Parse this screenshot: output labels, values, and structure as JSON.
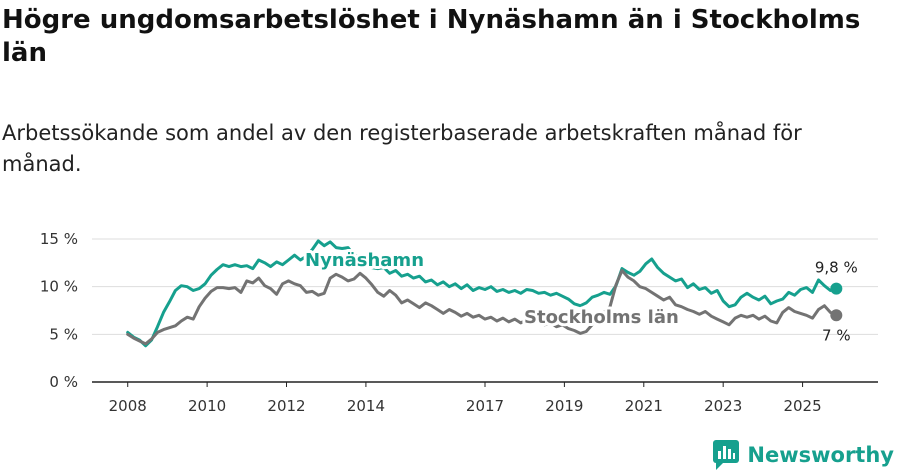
{
  "title": "Högre ungdomsarbetslöshet i Nynäshamn än i Stockholms län",
  "subtitle": "Arbetssökande som andel av den registerbaserade arbetskraften månad för månad.",
  "brand": "Newsworthy",
  "colors": {
    "nynashamn": "#16a08e",
    "stockholm": "#737373",
    "grid": "#dddddd",
    "axis": "#222222",
    "brand": "#16a08e"
  },
  "chart_data": {
    "type": "line",
    "title": "Högre ungdomsarbetslöshet i Nynäshamn än i Stockholms län",
    "xlabel": "",
    "ylabel": "",
    "xlim": [
      2007.1,
      2026.9
    ],
    "ylim": [
      0,
      15
    ],
    "grid": true,
    "x_ticks": [
      2008,
      2010,
      2012,
      2014,
      2017,
      2019,
      2021,
      2023,
      2025
    ],
    "y_ticks": [
      {
        "value": 0,
        "label": "0 %"
      },
      {
        "value": 5,
        "label": "5 %"
      },
      {
        "value": 10,
        "label": "10 %"
      },
      {
        "value": 15,
        "label": "15 %"
      }
    ],
    "series": [
      {
        "name": "Nynäshamn",
        "last_label": "9,8 %",
        "points": [
          [
            2008.0,
            5.2
          ],
          [
            2008.15,
            4.7
          ],
          [
            2008.3,
            4.4
          ],
          [
            2008.45,
            3.8
          ],
          [
            2008.6,
            4.4
          ],
          [
            2008.75,
            5.8
          ],
          [
            2008.9,
            7.3
          ],
          [
            2009.05,
            8.4
          ],
          [
            2009.2,
            9.6
          ],
          [
            2009.35,
            10.1
          ],
          [
            2009.5,
            10.0
          ],
          [
            2009.65,
            9.6
          ],
          [
            2009.8,
            9.8
          ],
          [
            2009.95,
            10.3
          ],
          [
            2010.1,
            11.2
          ],
          [
            2010.25,
            11.8
          ],
          [
            2010.4,
            12.3
          ],
          [
            2010.55,
            12.1
          ],
          [
            2010.7,
            12.3
          ],
          [
            2010.85,
            12.1
          ],
          [
            2011.0,
            12.2
          ],
          [
            2011.15,
            11.9
          ],
          [
            2011.3,
            12.8
          ],
          [
            2011.45,
            12.5
          ],
          [
            2011.6,
            12.1
          ],
          [
            2011.75,
            12.6
          ],
          [
            2011.9,
            12.3
          ],
          [
            2012.05,
            12.8
          ],
          [
            2012.2,
            13.3
          ],
          [
            2012.35,
            12.8
          ],
          [
            2012.5,
            13.2
          ],
          [
            2012.65,
            13.9
          ],
          [
            2012.8,
            14.8
          ],
          [
            2012.95,
            14.3
          ],
          [
            2013.1,
            14.7
          ],
          [
            2013.25,
            14.1
          ],
          [
            2013.4,
            14.0
          ],
          [
            2013.55,
            14.1
          ],
          [
            2013.7,
            13.3
          ],
          [
            2013.85,
            13.2
          ],
          [
            2014.0,
            12.4
          ],
          [
            2014.15,
            12.0
          ],
          [
            2014.3,
            11.9
          ],
          [
            2014.45,
            12.0
          ],
          [
            2014.6,
            11.4
          ],
          [
            2014.75,
            11.7
          ],
          [
            2014.9,
            11.1
          ],
          [
            2015.05,
            11.3
          ],
          [
            2015.2,
            10.9
          ],
          [
            2015.35,
            11.1
          ],
          [
            2015.5,
            10.5
          ],
          [
            2015.65,
            10.7
          ],
          [
            2015.8,
            10.2
          ],
          [
            2015.95,
            10.5
          ],
          [
            2016.1,
            10.0
          ],
          [
            2016.25,
            10.3
          ],
          [
            2016.4,
            9.8
          ],
          [
            2016.55,
            10.2
          ],
          [
            2016.7,
            9.6
          ],
          [
            2016.85,
            9.9
          ],
          [
            2017.0,
            9.7
          ],
          [
            2017.15,
            10.0
          ],
          [
            2017.3,
            9.5
          ],
          [
            2017.45,
            9.7
          ],
          [
            2017.6,
            9.4
          ],
          [
            2017.75,
            9.6
          ],
          [
            2017.9,
            9.3
          ],
          [
            2018.05,
            9.7
          ],
          [
            2018.2,
            9.6
          ],
          [
            2018.35,
            9.3
          ],
          [
            2018.5,
            9.4
          ],
          [
            2018.65,
            9.1
          ],
          [
            2018.8,
            9.3
          ],
          [
            2018.95,
            9.0
          ],
          [
            2019.1,
            8.7
          ],
          [
            2019.25,
            8.2
          ],
          [
            2019.4,
            8.0
          ],
          [
            2019.55,
            8.3
          ],
          [
            2019.7,
            8.9
          ],
          [
            2019.85,
            9.1
          ],
          [
            2020.0,
            9.4
          ],
          [
            2020.15,
            9.2
          ],
          [
            2020.3,
            10.1
          ],
          [
            2020.45,
            11.9
          ],
          [
            2020.6,
            11.5
          ],
          [
            2020.75,
            11.2
          ],
          [
            2020.9,
            11.6
          ],
          [
            2021.05,
            12.4
          ],
          [
            2021.2,
            12.9
          ],
          [
            2021.35,
            12.0
          ],
          [
            2021.5,
            11.4
          ],
          [
            2021.65,
            11.0
          ],
          [
            2021.8,
            10.6
          ],
          [
            2021.95,
            10.8
          ],
          [
            2022.1,
            9.9
          ],
          [
            2022.25,
            10.3
          ],
          [
            2022.4,
            9.7
          ],
          [
            2022.55,
            9.9
          ],
          [
            2022.7,
            9.3
          ],
          [
            2022.85,
            9.6
          ],
          [
            2023.0,
            8.5
          ],
          [
            2023.15,
            7.9
          ],
          [
            2023.3,
            8.1
          ],
          [
            2023.45,
            8.9
          ],
          [
            2023.6,
            9.3
          ],
          [
            2023.75,
            8.9
          ],
          [
            2023.9,
            8.6
          ],
          [
            2024.05,
            9.0
          ],
          [
            2024.2,
            8.2
          ],
          [
            2024.35,
            8.5
          ],
          [
            2024.5,
            8.7
          ],
          [
            2024.65,
            9.4
          ],
          [
            2024.8,
            9.1
          ],
          [
            2024.95,
            9.7
          ],
          [
            2025.1,
            9.9
          ],
          [
            2025.25,
            9.4
          ],
          [
            2025.4,
            10.7
          ],
          [
            2025.55,
            10.1
          ],
          [
            2025.7,
            9.6
          ],
          [
            2025.85,
            9.8
          ]
        ]
      },
      {
        "name": "Stockholms län",
        "last_label": "7 %",
        "points": [
          [
            2008.0,
            5.0
          ],
          [
            2008.15,
            4.6
          ],
          [
            2008.3,
            4.3
          ],
          [
            2008.45,
            4.0
          ],
          [
            2008.6,
            4.5
          ],
          [
            2008.75,
            5.2
          ],
          [
            2008.9,
            5.5
          ],
          [
            2009.05,
            5.7
          ],
          [
            2009.2,
            5.9
          ],
          [
            2009.35,
            6.4
          ],
          [
            2009.5,
            6.8
          ],
          [
            2009.65,
            6.6
          ],
          [
            2009.8,
            7.9
          ],
          [
            2009.95,
            8.8
          ],
          [
            2010.1,
            9.5
          ],
          [
            2010.25,
            9.9
          ],
          [
            2010.4,
            9.9
          ],
          [
            2010.55,
            9.8
          ],
          [
            2010.7,
            9.9
          ],
          [
            2010.85,
            9.4
          ],
          [
            2011.0,
            10.6
          ],
          [
            2011.15,
            10.4
          ],
          [
            2011.3,
            10.9
          ],
          [
            2011.45,
            10.1
          ],
          [
            2011.6,
            9.8
          ],
          [
            2011.75,
            9.2
          ],
          [
            2011.9,
            10.3
          ],
          [
            2012.05,
            10.6
          ],
          [
            2012.2,
            10.3
          ],
          [
            2012.35,
            10.1
          ],
          [
            2012.5,
            9.4
          ],
          [
            2012.65,
            9.5
          ],
          [
            2012.8,
            9.1
          ],
          [
            2012.95,
            9.3
          ],
          [
            2013.1,
            10.9
          ],
          [
            2013.25,
            11.3
          ],
          [
            2013.4,
            11.0
          ],
          [
            2013.55,
            10.6
          ],
          [
            2013.7,
            10.8
          ],
          [
            2013.85,
            11.4
          ],
          [
            2014.0,
            10.9
          ],
          [
            2014.15,
            10.2
          ],
          [
            2014.3,
            9.4
          ],
          [
            2014.45,
            9.0
          ],
          [
            2014.6,
            9.6
          ],
          [
            2014.75,
            9.1
          ],
          [
            2014.9,
            8.3
          ],
          [
            2015.05,
            8.6
          ],
          [
            2015.2,
            8.2
          ],
          [
            2015.35,
            7.8
          ],
          [
            2015.5,
            8.3
          ],
          [
            2015.65,
            8.0
          ],
          [
            2015.8,
            7.6
          ],
          [
            2015.95,
            7.2
          ],
          [
            2016.1,
            7.6
          ],
          [
            2016.25,
            7.3
          ],
          [
            2016.4,
            6.9
          ],
          [
            2016.55,
            7.2
          ],
          [
            2016.7,
            6.8
          ],
          [
            2016.85,
            7.0
          ],
          [
            2017.0,
            6.6
          ],
          [
            2017.15,
            6.8
          ],
          [
            2017.3,
            6.4
          ],
          [
            2017.45,
            6.7
          ],
          [
            2017.6,
            6.3
          ],
          [
            2017.75,
            6.6
          ],
          [
            2017.9,
            6.2
          ],
          [
            2018.05,
            6.5
          ],
          [
            2018.2,
            6.1
          ],
          [
            2018.35,
            6.4
          ],
          [
            2018.5,
            6.0
          ],
          [
            2018.65,
            6.2
          ],
          [
            2018.8,
            5.8
          ],
          [
            2018.95,
            6.0
          ],
          [
            2019.1,
            5.6
          ],
          [
            2019.25,
            5.4
          ],
          [
            2019.4,
            5.1
          ],
          [
            2019.55,
            5.3
          ],
          [
            2019.7,
            6.0
          ],
          [
            2019.85,
            6.9
          ],
          [
            2020.0,
            7.3
          ],
          [
            2020.15,
            7.9
          ],
          [
            2020.3,
            10.2
          ],
          [
            2020.45,
            11.7
          ],
          [
            2020.6,
            11.0
          ],
          [
            2020.75,
            10.6
          ],
          [
            2020.9,
            10.0
          ],
          [
            2021.05,
            9.8
          ],
          [
            2021.2,
            9.4
          ],
          [
            2021.35,
            9.0
          ],
          [
            2021.5,
            8.6
          ],
          [
            2021.65,
            8.9
          ],
          [
            2021.8,
            8.1
          ],
          [
            2021.95,
            7.9
          ],
          [
            2022.1,
            7.6
          ],
          [
            2022.25,
            7.4
          ],
          [
            2022.4,
            7.1
          ],
          [
            2022.55,
            7.4
          ],
          [
            2022.7,
            6.9
          ],
          [
            2022.85,
            6.6
          ],
          [
            2023.0,
            6.3
          ],
          [
            2023.15,
            6.0
          ],
          [
            2023.3,
            6.7
          ],
          [
            2023.45,
            7.0
          ],
          [
            2023.6,
            6.8
          ],
          [
            2023.75,
            7.0
          ],
          [
            2023.9,
            6.6
          ],
          [
            2024.05,
            6.9
          ],
          [
            2024.2,
            6.4
          ],
          [
            2024.35,
            6.2
          ],
          [
            2024.5,
            7.3
          ],
          [
            2024.65,
            7.8
          ],
          [
            2024.8,
            7.4
          ],
          [
            2024.95,
            7.2
          ],
          [
            2025.1,
            7.0
          ],
          [
            2025.25,
            6.7
          ],
          [
            2025.4,
            7.6
          ],
          [
            2025.55,
            8.0
          ],
          [
            2025.7,
            7.3
          ],
          [
            2025.85,
            7.0
          ]
        ]
      }
    ],
    "annotations": [
      {
        "text": "Nynäshamn",
        "series": "Nynäshamn"
      },
      {
        "text": "Stockholms län",
        "series": "Stockholms län"
      }
    ]
  }
}
